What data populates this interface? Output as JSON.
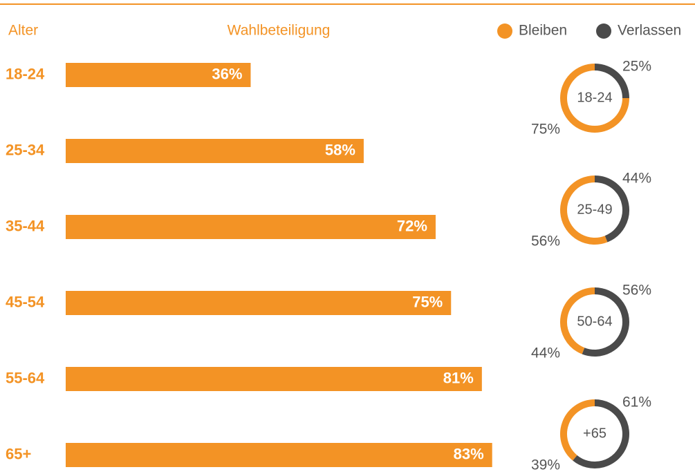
{
  "chart_data": [
    {
      "type": "bar",
      "orientation": "horizontal",
      "ylabel": "Alter",
      "xlabel": "Wahlbeteiligung",
      "categories": [
        "18-24",
        "25-34",
        "35-44",
        "45-54",
        "55-64",
        "65+"
      ],
      "values": [
        36,
        58,
        72,
        75,
        81,
        83
      ],
      "value_labels": [
        "36%",
        "58%",
        "72%",
        "75%",
        "81%",
        "83%"
      ],
      "color": "#f39325"
    },
    {
      "type": "donut",
      "categories": [
        "18-24",
        "25-49",
        "50-64",
        "+65"
      ],
      "series": [
        {
          "name": "Bleiben",
          "color": "#f39325",
          "values": [
            75,
            56,
            44,
            39
          ],
          "value_labels": [
            "75%",
            "56%",
            "44%",
            "39%"
          ]
        },
        {
          "name": "Verlassen",
          "color": "#4a4a4a",
          "values": [
            25,
            44,
            56,
            61
          ],
          "value_labels": [
            "25%",
            "44%",
            "56%",
            "61%"
          ]
        }
      ],
      "legend": "top-right"
    }
  ]
}
